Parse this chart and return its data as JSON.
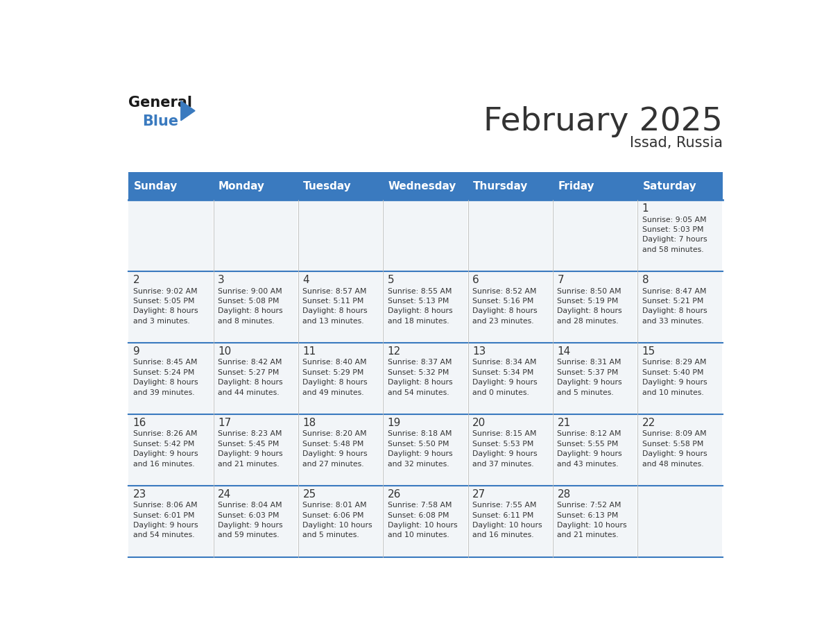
{
  "title": "February 2025",
  "subtitle": "Issad, Russia",
  "header_color": "#3a7abf",
  "header_text_color": "#ffffff",
  "cell_bg_color": "#f2f5f8",
  "border_color": "#3a7abf",
  "text_color": "#333333",
  "days_of_week": [
    "Sunday",
    "Monday",
    "Tuesday",
    "Wednesday",
    "Thursday",
    "Friday",
    "Saturday"
  ],
  "calendar_data": [
    [
      {
        "day": "",
        "info": ""
      },
      {
        "day": "",
        "info": ""
      },
      {
        "day": "",
        "info": ""
      },
      {
        "day": "",
        "info": ""
      },
      {
        "day": "",
        "info": ""
      },
      {
        "day": "",
        "info": ""
      },
      {
        "day": "1",
        "info": "Sunrise: 9:05 AM\nSunset: 5:03 PM\nDaylight: 7 hours\nand 58 minutes."
      }
    ],
    [
      {
        "day": "2",
        "info": "Sunrise: 9:02 AM\nSunset: 5:05 PM\nDaylight: 8 hours\nand 3 minutes."
      },
      {
        "day": "3",
        "info": "Sunrise: 9:00 AM\nSunset: 5:08 PM\nDaylight: 8 hours\nand 8 minutes."
      },
      {
        "day": "4",
        "info": "Sunrise: 8:57 AM\nSunset: 5:11 PM\nDaylight: 8 hours\nand 13 minutes."
      },
      {
        "day": "5",
        "info": "Sunrise: 8:55 AM\nSunset: 5:13 PM\nDaylight: 8 hours\nand 18 minutes."
      },
      {
        "day": "6",
        "info": "Sunrise: 8:52 AM\nSunset: 5:16 PM\nDaylight: 8 hours\nand 23 minutes."
      },
      {
        "day": "7",
        "info": "Sunrise: 8:50 AM\nSunset: 5:19 PM\nDaylight: 8 hours\nand 28 minutes."
      },
      {
        "day": "8",
        "info": "Sunrise: 8:47 AM\nSunset: 5:21 PM\nDaylight: 8 hours\nand 33 minutes."
      }
    ],
    [
      {
        "day": "9",
        "info": "Sunrise: 8:45 AM\nSunset: 5:24 PM\nDaylight: 8 hours\nand 39 minutes."
      },
      {
        "day": "10",
        "info": "Sunrise: 8:42 AM\nSunset: 5:27 PM\nDaylight: 8 hours\nand 44 minutes."
      },
      {
        "day": "11",
        "info": "Sunrise: 8:40 AM\nSunset: 5:29 PM\nDaylight: 8 hours\nand 49 minutes."
      },
      {
        "day": "12",
        "info": "Sunrise: 8:37 AM\nSunset: 5:32 PM\nDaylight: 8 hours\nand 54 minutes."
      },
      {
        "day": "13",
        "info": "Sunrise: 8:34 AM\nSunset: 5:34 PM\nDaylight: 9 hours\nand 0 minutes."
      },
      {
        "day": "14",
        "info": "Sunrise: 8:31 AM\nSunset: 5:37 PM\nDaylight: 9 hours\nand 5 minutes."
      },
      {
        "day": "15",
        "info": "Sunrise: 8:29 AM\nSunset: 5:40 PM\nDaylight: 9 hours\nand 10 minutes."
      }
    ],
    [
      {
        "day": "16",
        "info": "Sunrise: 8:26 AM\nSunset: 5:42 PM\nDaylight: 9 hours\nand 16 minutes."
      },
      {
        "day": "17",
        "info": "Sunrise: 8:23 AM\nSunset: 5:45 PM\nDaylight: 9 hours\nand 21 minutes."
      },
      {
        "day": "18",
        "info": "Sunrise: 8:20 AM\nSunset: 5:48 PM\nDaylight: 9 hours\nand 27 minutes."
      },
      {
        "day": "19",
        "info": "Sunrise: 8:18 AM\nSunset: 5:50 PM\nDaylight: 9 hours\nand 32 minutes."
      },
      {
        "day": "20",
        "info": "Sunrise: 8:15 AM\nSunset: 5:53 PM\nDaylight: 9 hours\nand 37 minutes."
      },
      {
        "day": "21",
        "info": "Sunrise: 8:12 AM\nSunset: 5:55 PM\nDaylight: 9 hours\nand 43 minutes."
      },
      {
        "day": "22",
        "info": "Sunrise: 8:09 AM\nSunset: 5:58 PM\nDaylight: 9 hours\nand 48 minutes."
      }
    ],
    [
      {
        "day": "23",
        "info": "Sunrise: 8:06 AM\nSunset: 6:01 PM\nDaylight: 9 hours\nand 54 minutes."
      },
      {
        "day": "24",
        "info": "Sunrise: 8:04 AM\nSunset: 6:03 PM\nDaylight: 9 hours\nand 59 minutes."
      },
      {
        "day": "25",
        "info": "Sunrise: 8:01 AM\nSunset: 6:06 PM\nDaylight: 10 hours\nand 5 minutes."
      },
      {
        "day": "26",
        "info": "Sunrise: 7:58 AM\nSunset: 6:08 PM\nDaylight: 10 hours\nand 10 minutes."
      },
      {
        "day": "27",
        "info": "Sunrise: 7:55 AM\nSunset: 6:11 PM\nDaylight: 10 hours\nand 16 minutes."
      },
      {
        "day": "28",
        "info": "Sunrise: 7:52 AM\nSunset: 6:13 PM\nDaylight: 10 hours\nand 21 minutes."
      },
      {
        "day": "",
        "info": ""
      }
    ]
  ]
}
